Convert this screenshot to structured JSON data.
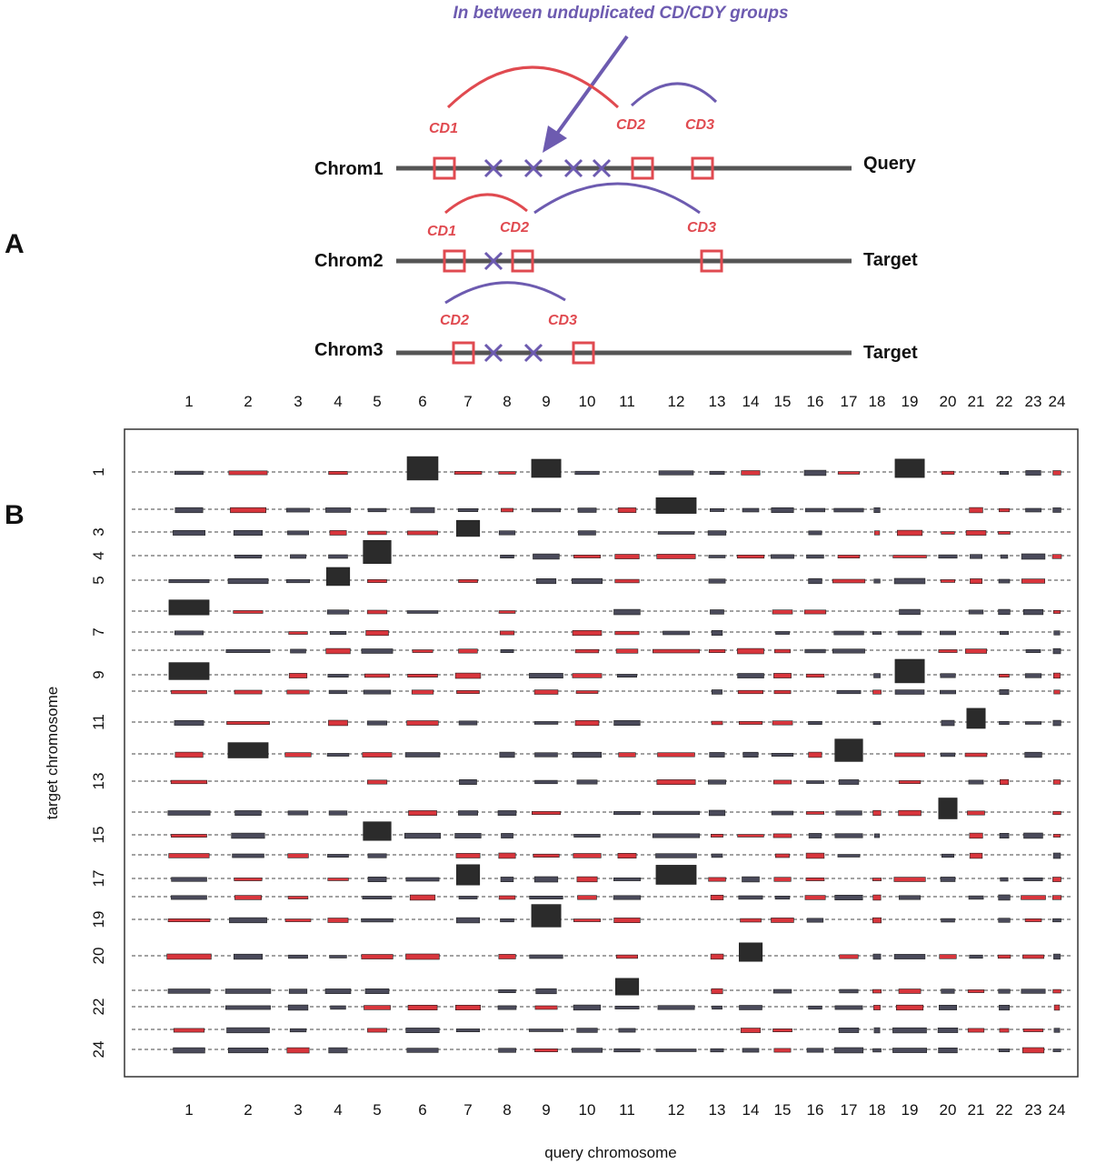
{
  "panel_a": {
    "letter": "A",
    "annotation": "In between unduplicated CD/CDY groups",
    "rows": [
      {
        "chrom": "Chrom1",
        "role": "Query",
        "boxes": [
          "CD1",
          "CD2",
          "CD3"
        ]
      },
      {
        "chrom": "Chrom2",
        "role": "Target",
        "boxes": [
          "CD1",
          "CD2",
          "CD3"
        ]
      },
      {
        "chrom": "Chrom3",
        "role": "Target",
        "boxes": [
          "CD2",
          "CD3"
        ]
      }
    ],
    "colors": {
      "cd": "#e04a50",
      "link": "#6d5bb0",
      "line": "#555555"
    }
  },
  "panel_b": {
    "letter": "B",
    "chart_data": {
      "type": "heatmap",
      "xlabel": "query chromosome",
      "ylabel": "target chromosome",
      "x_categories": [
        "1",
        "2",
        "3",
        "4",
        "5",
        "6",
        "7",
        "8",
        "9",
        "10",
        "11",
        "12",
        "13",
        "14",
        "15",
        "16",
        "17",
        "18",
        "19",
        "20",
        "21",
        "22",
        "23",
        "24"
      ],
      "y_tick_labels": [
        "1",
        "3",
        "4",
        "5",
        "7",
        "9",
        "11",
        "13",
        "15",
        "17",
        "19",
        "20",
        "22",
        "24"
      ],
      "y_rows": [
        "1",
        "2",
        "3",
        "4",
        "5",
        "6",
        "7",
        "8",
        "9",
        "10",
        "11",
        "12",
        "13",
        "14",
        "15",
        "16",
        "17",
        "18",
        "19",
        "20",
        "21",
        "22",
        "23",
        "24"
      ],
      "mark_colors": {
        "self": "#d8353c",
        "other": "#2b2b2b"
      },
      "strong_blocks": [
        {
          "q": "6",
          "t": "1"
        },
        {
          "q": "9",
          "t": "1"
        },
        {
          "q": "19",
          "t": "1"
        },
        {
          "q": "12",
          "t": "2"
        },
        {
          "q": "1",
          "t": "6"
        },
        {
          "q": "2",
          "t": "12"
        },
        {
          "q": "11",
          "t": "21"
        },
        {
          "q": "14",
          "t": "20"
        },
        {
          "q": "20",
          "t": "14"
        },
        {
          "q": "9",
          "t": "19"
        },
        {
          "q": "1",
          "t": "9"
        },
        {
          "q": "17",
          "t": "12"
        },
        {
          "q": "12",
          "t": "17"
        },
        {
          "q": "4",
          "t": "5"
        },
        {
          "q": "5",
          "t": "4"
        },
        {
          "q": "21",
          "t": "11"
        },
        {
          "q": "19",
          "t": "9"
        },
        {
          "q": "7",
          "t": "17"
        },
        {
          "q": "7",
          "t": "3"
        },
        {
          "q": "5",
          "t": "15"
        }
      ]
    }
  }
}
